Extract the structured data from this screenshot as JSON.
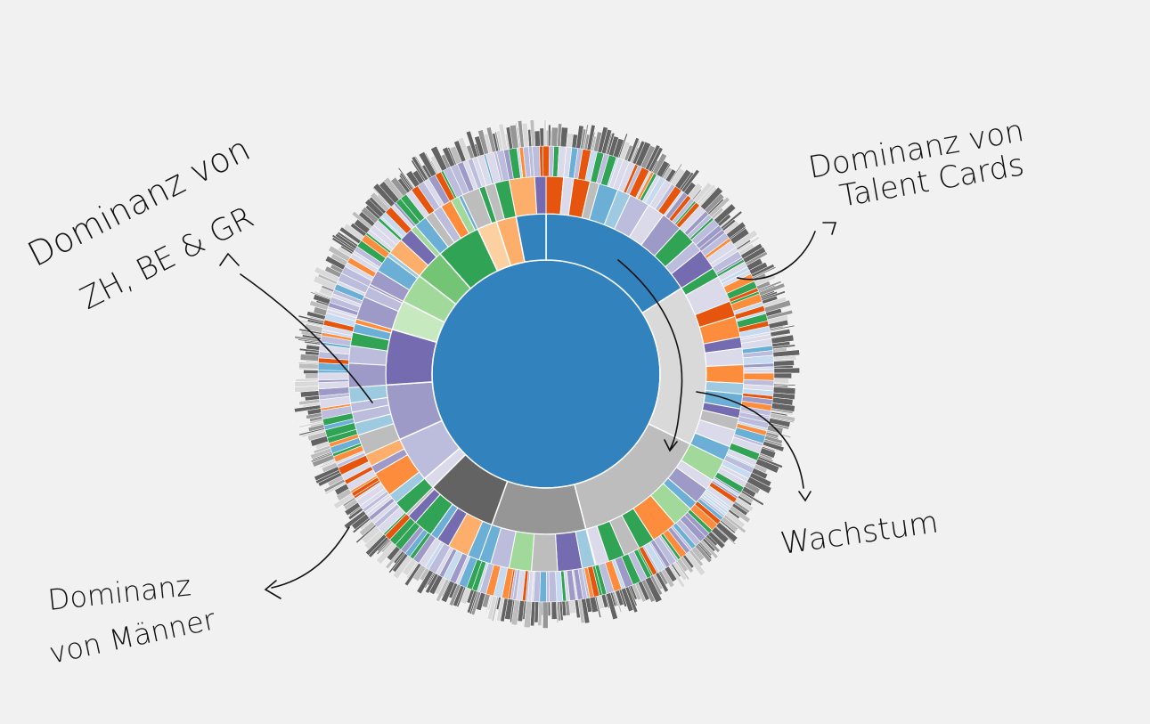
{
  "chart_data": {
    "type": "sunburst",
    "title": "",
    "center": {
      "color": "#3182bd"
    },
    "rings": [
      {
        "level": 1,
        "segments": [
          {
            "value": 0.16,
            "color": "#3182bd"
          },
          {
            "value": 0.162,
            "color": "#d9d9d9"
          },
          {
            "value": 0.138,
            "color": "#bdbdbd"
          },
          {
            "value": 0.095,
            "color": "#969696"
          },
          {
            "value": 0.07,
            "color": "#636363"
          },
          {
            "value": 0.012,
            "color": "#dadaeb"
          },
          {
            "value": 0.046,
            "color": "#bcbddc"
          },
          {
            "value": 0.056,
            "color": "#9e9ac8"
          },
          {
            "value": 0.056,
            "color": "#756bb1"
          },
          {
            "value": 0.03,
            "color": "#c7e9c0"
          },
          {
            "value": 0.03,
            "color": "#a1d99b"
          },
          {
            "value": 0.03,
            "color": "#74c476"
          },
          {
            "value": 0.045,
            "color": "#31a354"
          },
          {
            "value": 0.02,
            "color": "#fdd0a2"
          },
          {
            "value": 0.02,
            "color": "#fdae6b"
          },
          {
            "value": 0.03,
            "color": "#3182bd"
          }
        ]
      }
    ]
  },
  "annotations": {
    "top_left": {
      "line1": "Dominanz von",
      "line2": "ZH, BE & GR"
    },
    "top_right": {
      "line1": "Dominanz von",
      "line2": "Talent Cards"
    },
    "right": {
      "line1": "Wachstum"
    },
    "bottom_left": {
      "line1": "Dominanz",
      "line2": "von Männer"
    }
  },
  "palette": [
    "#3182bd",
    "#6baed6",
    "#9ecae1",
    "#c6dbef",
    "#e6550d",
    "#fd8d3c",
    "#fdae6b",
    "#fdd0a2",
    "#31a354",
    "#74c476",
    "#a1d99b",
    "#c7e9c0",
    "#756bb1",
    "#9e9ac8",
    "#bcbddc",
    "#dadaeb",
    "#636363",
    "#969696",
    "#bdbdbd",
    "#d9d9d9"
  ]
}
